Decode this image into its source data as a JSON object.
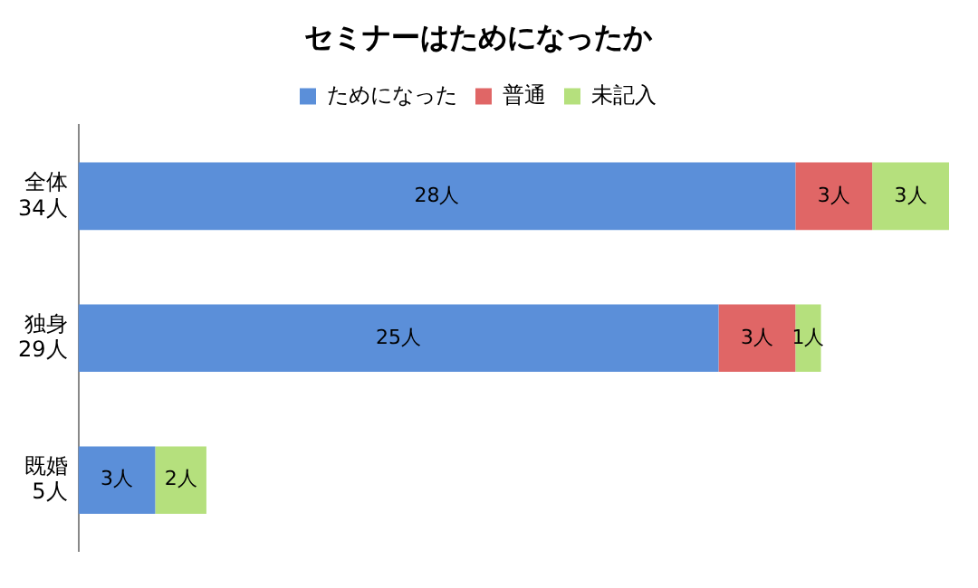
{
  "chart_data": {
    "type": "bar",
    "orientation": "horizontal",
    "stacked": true,
    "title": "セミナーはためになったか",
    "legend": "top",
    "categories": [
      "全体\n34人",
      "独身\n29人",
      "既婚\n5人"
    ],
    "series": [
      {
        "name": "ためになった",
        "color": "#5b8fd9",
        "values": [
          28,
          25,
          3
        ],
        "value_labels": [
          "28人",
          "25人",
          "3人"
        ]
      },
      {
        "name": "普通",
        "color": "#e06666",
        "values": [
          3,
          3,
          0
        ],
        "value_labels": [
          "3人",
          "3人",
          null
        ]
      },
      {
        "name": "未記入",
        "color": "#b5e07d",
        "values": [
          3,
          1,
          2
        ],
        "value_labels": [
          "3人",
          "1人",
          "2人"
        ]
      }
    ]
  }
}
